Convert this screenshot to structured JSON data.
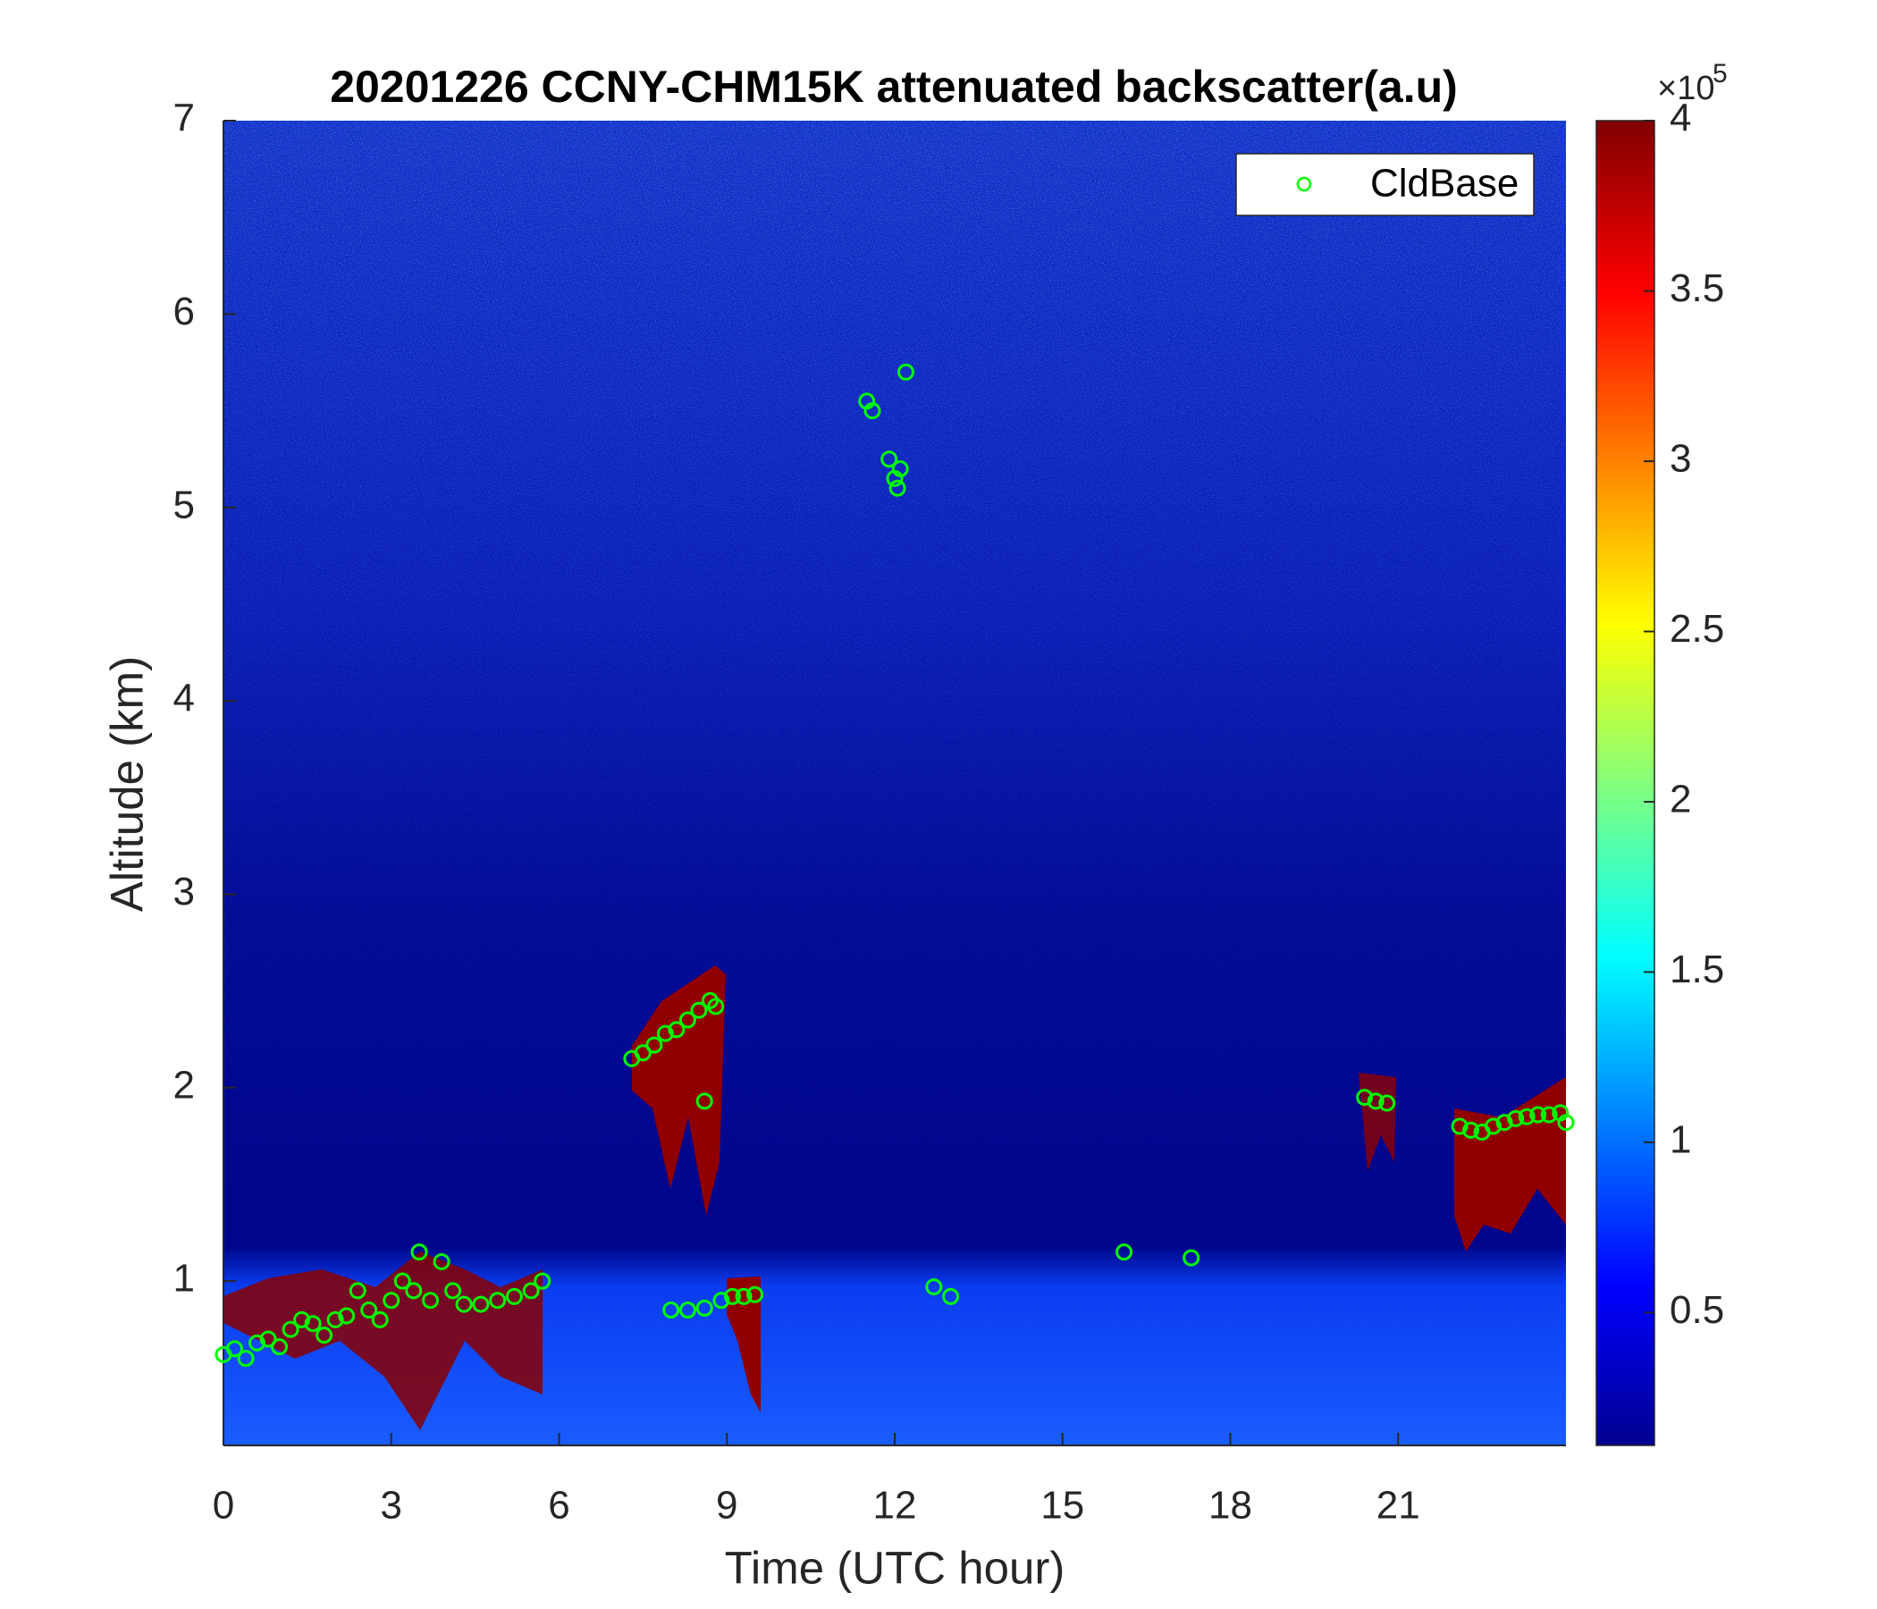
{
  "chart_data": {
    "type": "heatmap-scatter",
    "title": "20201226 CCNY-CHM15K attenuated backscatter(a.u)",
    "x_label": "Time (UTC hour)",
    "y_label": "Altitude (km)",
    "xlim": [
      0,
      24
    ],
    "xticks": [
      0,
      3,
      6,
      9,
      12,
      15,
      18,
      21
    ],
    "ylim": [
      0.15,
      7
    ],
    "yticks": [
      1,
      2,
      3,
      4,
      5,
      6,
      7
    ],
    "colorbar": {
      "clim": [
        0.11,
        4
      ],
      "ticks": [
        0.5,
        1,
        1.5,
        2,
        2.5,
        3,
        3.5,
        4
      ],
      "exponent_base": "×10",
      "exponent_power": "5",
      "colormap": "jet"
    },
    "legend": "northeast",
    "series": [
      {
        "name": "CldBase",
        "color": "#00ff00",
        "marker": "circle",
        "x": [
          0,
          0.2,
          0.4,
          0.6,
          0.8,
          1.0,
          1.2,
          1.4,
          1.6,
          1.8,
          2.0,
          2.2,
          2.4,
          2.6,
          2.8,
          3.0,
          3.2,
          3.4,
          3.5,
          3.7,
          3.9,
          4.1,
          4.3,
          4.6,
          4.9,
          5.2,
          5.5,
          5.7,
          7.3,
          7.5,
          7.7,
          7.9,
          8.1,
          8.3,
          8.5,
          8.7,
          8.8,
          8.6,
          8.0,
          8.3,
          8.6,
          8.9,
          9.1,
          9.3,
          9.5,
          11.5,
          11.6,
          11.9,
          12.0,
          12.05,
          12.1,
          12.2,
          12.7,
          13.0,
          16.1,
          17.3,
          20.4,
          20.6,
          20.8,
          22.1,
          22.3,
          22.5,
          22.7,
          22.9,
          23.1,
          23.3,
          23.5,
          23.7,
          23.9,
          24.0
        ],
        "y": [
          0.62,
          0.65,
          0.6,
          0.68,
          0.7,
          0.66,
          0.75,
          0.8,
          0.78,
          0.72,
          0.8,
          0.82,
          0.95,
          0.85,
          0.8,
          0.9,
          1.0,
          0.95,
          1.15,
          0.9,
          1.1,
          0.95,
          0.88,
          0.88,
          0.9,
          0.92,
          0.95,
          1.0,
          2.15,
          2.18,
          2.22,
          2.28,
          2.3,
          2.35,
          2.4,
          2.45,
          2.42,
          1.93,
          0.85,
          0.85,
          0.86,
          0.9,
          0.92,
          0.92,
          0.93,
          5.55,
          5.5,
          5.25,
          5.15,
          5.1,
          5.2,
          5.7,
          0.97,
          0.92,
          1.15,
          1.12,
          1.95,
          1.93,
          1.92,
          1.8,
          1.78,
          1.77,
          1.8,
          1.82,
          1.84,
          1.85,
          1.86,
          1.86,
          1.87,
          1.82
        ]
      }
    ]
  }
}
